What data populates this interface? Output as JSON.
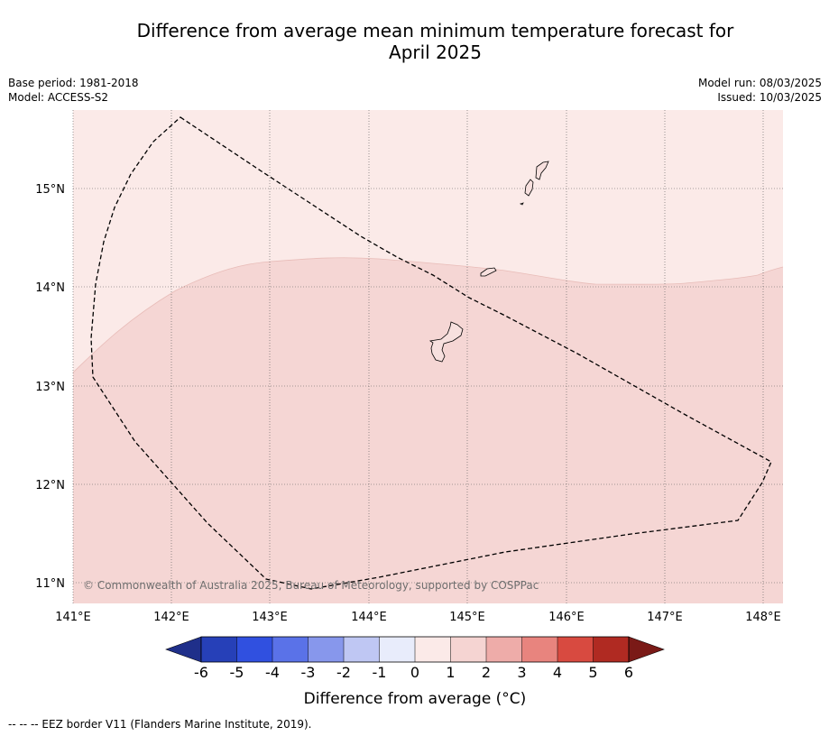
{
  "title_line1": "Difference from average mean minimum temperature forecast for",
  "title_line2": "April 2025",
  "meta_left": {
    "base_period": "Base period: 1981-2018",
    "model": "Model: ACCESS-S2"
  },
  "meta_right": {
    "model_run": "Model run: 08/03/2025",
    "issued": "Issued: 10/03/2025"
  },
  "copyright": "© Commonwealth of Australia 2025, Bureau of Meteorology, supported by COSPPac",
  "lat_labels": [
    "15°N",
    "14°N",
    "13°N",
    "12°N",
    "11°N"
  ],
  "lon_labels": [
    "141°E",
    "142°E",
    "143°E",
    "144°E",
    "145°E",
    "146°E",
    "147°E",
    "148°E"
  ],
  "colorbar": {
    "tick_labels": [
      "-6",
      "-5",
      "-4",
      "-3",
      "-2",
      "-1",
      "0",
      "1",
      "2",
      "3",
      "4",
      "5",
      "6"
    ],
    "label": "Difference from average (°C)",
    "colors": [
      "#1f2f8a",
      "#2640b8",
      "#3050e0",
      "#5a72e8",
      "#8797ec",
      "#bfc7f3",
      "#e8ecfb",
      "#fbeae8",
      "#f5d4d2",
      "#eeaca9",
      "#e8847e",
      "#d84a40",
      "#b02a22",
      "#7a1a17"
    ]
  },
  "zones": {
    "upper_color": "#fbeae8",
    "lower_color": "#f5d6d4"
  },
  "footer": "--  --  -- EEZ border V11 (Flanders Marine Institute, 2019)."
}
